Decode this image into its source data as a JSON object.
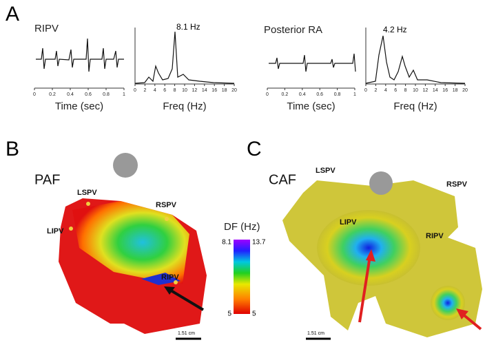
{
  "panels": [
    {
      "letter": "A",
      "plots": [
        {
          "site": "RIPV",
          "peak_label": "8.1 Hz",
          "time_axis": {
            "label": "Time (sec)",
            "ticks": [
              0,
              0.2,
              0.4,
              0.6,
              0.8,
              1
            ]
          },
          "freq_axis": {
            "label": "Freq (Hz)",
            "ticks": [
              0,
              2,
              4,
              6,
              8,
              10,
              12,
              14,
              16,
              18,
              20
            ]
          }
        },
        {
          "site": "Posterior RA",
          "peak_label": "4.2 Hz",
          "time_axis": {
            "label": "Time (sec)",
            "ticks": [
              0,
              0.2,
              0.4,
              0.6,
              0.8,
              1
            ]
          },
          "freq_axis": {
            "label": "Freq (Hz)",
            "ticks": [
              0,
              2,
              4,
              6,
              8,
              10,
              12,
              14,
              16,
              18,
              20
            ]
          }
        }
      ]
    },
    {
      "letter": "B",
      "condition": "PAF",
      "landmarks": [
        "LSPV",
        "RSPV",
        "LIPV",
        "RIPV"
      ],
      "scale_bar": "1.51 cm"
    },
    {
      "letter": "C",
      "condition": "CAF",
      "landmarks": [
        "LSPV",
        "RSPV",
        "LIPV",
        "RIPV"
      ],
      "scale_bar": "1.51 cm"
    }
  ],
  "colorbar": {
    "title": "DF (Hz)",
    "left_top": "8.1",
    "right_top": "13.7",
    "left_bottom": "5",
    "right_bottom": "5"
  }
}
